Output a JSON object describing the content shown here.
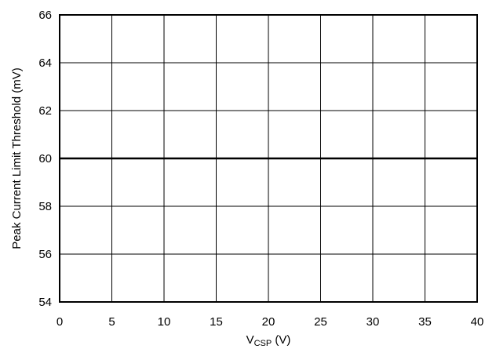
{
  "chart_data": {
    "type": "line",
    "title": "",
    "xlabel": {
      "main": "V",
      "subscript": "CSP",
      "unit": " (V)"
    },
    "ylabel": "Peak Current Limit Threshold (mV)",
    "xlim": [
      0,
      40
    ],
    "ylim": [
      54,
      66
    ],
    "xticks": [
      0,
      5,
      10,
      15,
      20,
      25,
      30,
      35,
      40
    ],
    "yticks": [
      54,
      56,
      58,
      60,
      62,
      64,
      66
    ],
    "xtick_labels": [
      "0",
      "5",
      "10",
      "15",
      "20",
      "25",
      "30",
      "35",
      "40"
    ],
    "ytick_labels": [
      "54",
      "56",
      "58",
      "60",
      "62",
      "64",
      "66"
    ],
    "grid": true,
    "series": [
      {
        "x": [
          0,
          5,
          10,
          15,
          20,
          25,
          30,
          35,
          40
        ],
        "y": [
          60,
          60,
          60,
          60,
          60,
          60,
          60,
          60,
          60
        ]
      }
    ],
    "colors": {
      "line": "#000000",
      "grid": "#000000",
      "background": "#ffffff"
    }
  }
}
